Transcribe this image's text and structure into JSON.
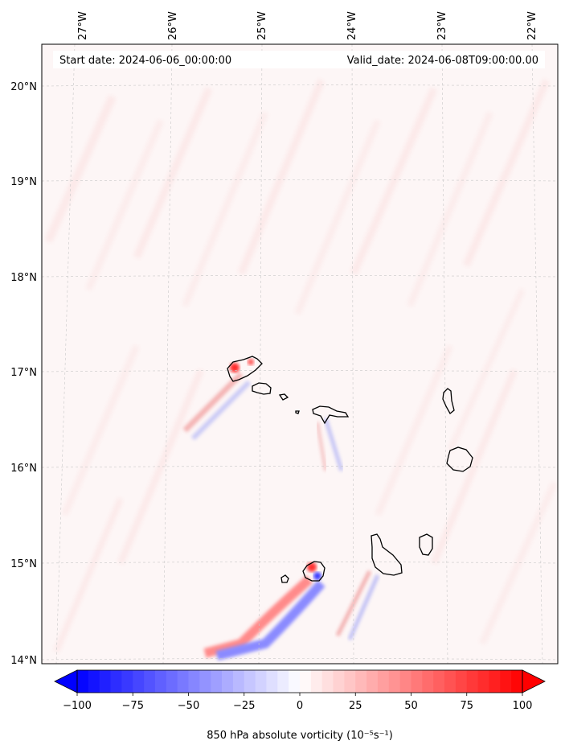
{
  "map": {
    "start_date": "Start date: 2024-06-06_00:00:00",
    "valid_date": "Valid_date: 2024-06-08T09:00:00.00",
    "lon_labels": [
      "27°W",
      "26°W",
      "25°W",
      "24°W",
      "23°W",
      "22°W"
    ],
    "lat_labels": [
      "20°N",
      "19°N",
      "18°N",
      "17°N",
      "16°N",
      "15°N",
      "14°N"
    ],
    "lon_values": [
      -27,
      -26,
      -25,
      -24,
      -23,
      -22
    ],
    "lat_values": [
      20,
      19,
      18,
      17,
      16,
      15,
      14
    ],
    "lon_range": [
      -27.35,
      -21.8
    ],
    "lat_range": [
      13.95,
      20.45
    ],
    "region": "Cape Verde Islands",
    "gridlines": true,
    "gridline_style": "dashed",
    "coastline_color": "#000000"
  },
  "colorbar": {
    "label": "850 hPa absolute vorticity (10⁻⁵s⁻¹)",
    "ticks": [
      "−100",
      "−75",
      "−50",
      "−25",
      "0",
      "25",
      "50",
      "75",
      "100"
    ],
    "tick_values": [
      -100,
      -75,
      -50,
      -25,
      0,
      25,
      50,
      75,
      100
    ],
    "range": [
      -100,
      100
    ],
    "levels": 40,
    "extend": "both",
    "colormap": "bwr",
    "min_color": "#0000ff",
    "mid_color": "#ffffff",
    "max_color": "#ff0000"
  }
}
